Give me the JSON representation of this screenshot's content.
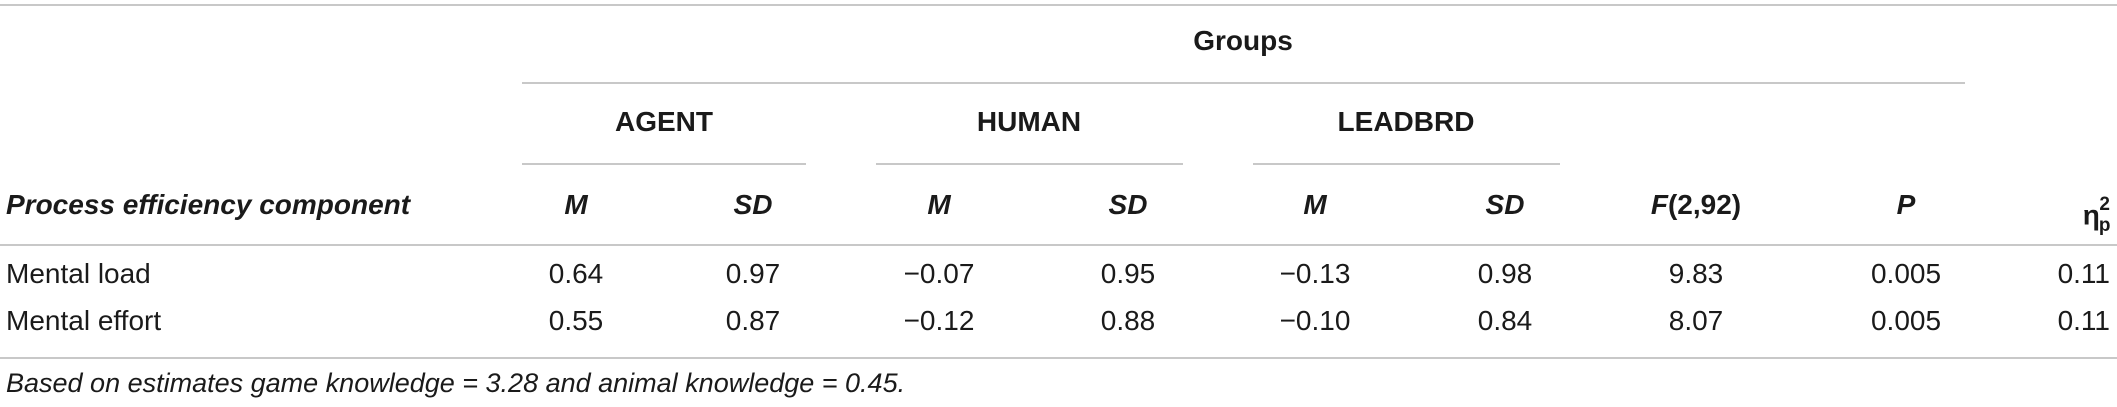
{
  "header": {
    "group_label": "Groups",
    "agent": "AGENT",
    "human": "HUMAN",
    "leadbrd": "LEADBRD",
    "row_label": "Process efficiency component",
    "m": "M",
    "sd": "SD",
    "f_prefix": "F",
    "f_suffix": "(2,92)",
    "p": "P",
    "eta_base": "η",
    "eta_sub": "p",
    "eta_sup": "2"
  },
  "rows": [
    {
      "label": "Mental load",
      "agent_m": "0.64",
      "agent_sd": "0.97",
      "human_m": "−0.07",
      "human_sd": "0.95",
      "leadbrd_m": "−0.13",
      "leadbrd_sd": "0.98",
      "f": "9.83",
      "p": "0.005",
      "eta": "0.11"
    },
    {
      "label": "Mental effort",
      "agent_m": "0.55",
      "agent_sd": "0.87",
      "human_m": "−0.12",
      "human_sd": "0.88",
      "leadbrd_m": "−0.10",
      "leadbrd_sd": "0.84",
      "f": "8.07",
      "p": "0.005",
      "eta": "0.11"
    }
  ],
  "footnote": "Based on estimates game knowledge = 3.28 and animal knowledge = 0.45."
}
